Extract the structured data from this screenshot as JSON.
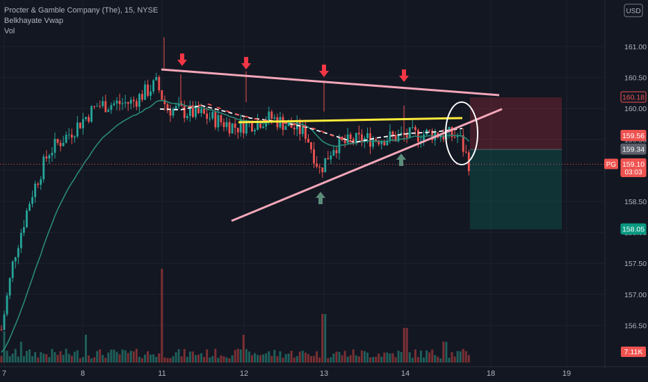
{
  "legend": {
    "title": "Procter & Gamble Company (The), 15, NYSE",
    "indicator": "Belkhayate Vwap",
    "volume_label": "Vol"
  },
  "currency": "USD",
  "colors": {
    "background": "#131722",
    "bull": "#26a69a",
    "bear": "#ef5350",
    "vol_bull": "#1f5f5a",
    "vol_bear": "#7a3034",
    "vwap": "#2a8a78",
    "pink": "#f4a7b9",
    "yellow": "#ffeb3b",
    "red_arrow": "#f23645",
    "green_arrow": "#5b8c7a"
  },
  "chart_data": {
    "type": "candlestick",
    "y_range": [
      156.0,
      161.5
    ],
    "y_ticks": [
      156.5,
      157.0,
      157.5,
      158.0,
      158.5,
      159.0,
      159.5,
      160.0,
      160.5,
      161.0
    ],
    "x_ticks": [
      "7",
      "8",
      "11",
      "12",
      "13",
      "14",
      "18",
      "19"
    ],
    "price_labels": [
      {
        "label": "160.18",
        "value": 160.18,
        "style": "stop"
      },
      {
        "label": "159.56",
        "value": 159.56,
        "style": "stop-fill"
      },
      {
        "label": "159.34",
        "value": 159.34,
        "style": "neutral"
      },
      {
        "label": "159.10",
        "sub": "03:03",
        "value": 159.1,
        "style": "current",
        "tag": "PG"
      },
      {
        "label": "158.05",
        "value": 158.05,
        "style": "target"
      }
    ],
    "volume_label": "7.11K",
    "session_days": [
      "7",
      "8",
      "11",
      "12",
      "13",
      "14"
    ]
  }
}
